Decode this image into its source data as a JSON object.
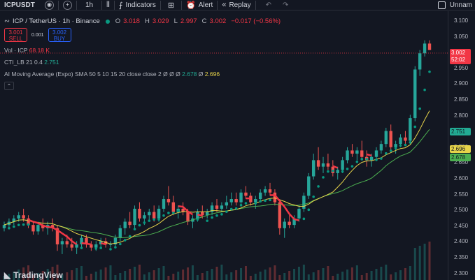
{
  "toolbar": {
    "symbol": "ICPUSDT",
    "interval": "1h",
    "indicators_label": "Indicators",
    "alert_label": "Alert",
    "replay_label": "Replay",
    "layout_name": "Unnam"
  },
  "legend": {
    "title": "ICP / TetherUS · 1h · Binance",
    "open_key": "O",
    "open": "3.018",
    "high_key": "H",
    "high": "3.029",
    "low_key": "L",
    "low": "2.997",
    "close_key": "C",
    "close": "3.002",
    "change": "−0.017 (−0.56%)"
  },
  "trade": {
    "sell_price": "3.001",
    "sell_label": "SELL",
    "spread": "0.001",
    "buy_price": "3.002",
    "buy_label": "BUY"
  },
  "indicators": {
    "vol_label": "Vol · ICP",
    "vol_value": "68.18 K",
    "cti_label": "CTI_LB 21 0.4",
    "cti_value": "2.751",
    "ama_label": "AI Moving Average (Expo) SMA 50 5 10 15 20 close close 2",
    "ama_v1": "Ø",
    "ama_v2": "Ø",
    "ama_v3": "Ø",
    "ama_v4": "2.678",
    "ama_v5": "Ø",
    "ama_v6": "2.696"
  },
  "price_axis": {
    "ticks": [
      "3.100",
      "3.050",
      "3.000",
      "2.950",
      "2.900",
      "2.850",
      "2.800",
      "2.750",
      "2.700",
      "2.650",
      "2.600",
      "2.550",
      "2.500",
      "2.450",
      "2.400",
      "2.350",
      "2.300"
    ]
  },
  "price_tags": {
    "last_price": "3.002",
    "countdown": "52:02",
    "cti": "2.751",
    "ama_yellow": "2.696",
    "ama_green": "2.678"
  },
  "colors": {
    "up": "#26a69a",
    "down": "#ef5350",
    "bg": "#131722",
    "ama_red": "#f23645",
    "ama_green": "#089981",
    "ma_yellow": "#e6d34a",
    "ma_green": "#4caf50"
  },
  "watermark": "TradingView",
  "chart_data": {
    "type": "candlestick",
    "ylim": [
      2.29,
      3.12
    ],
    "candles": [
      [
        2.45,
        2.47,
        2.44,
        2.46
      ],
      [
        2.46,
        2.48,
        2.45,
        2.47
      ],
      [
        2.47,
        2.49,
        2.46,
        2.48
      ],
      [
        2.48,
        2.5,
        2.47,
        2.49
      ],
      [
        2.49,
        2.51,
        2.47,
        2.48
      ],
      [
        2.48,
        2.49,
        2.45,
        2.46
      ],
      [
        2.46,
        2.47,
        2.43,
        2.44
      ],
      [
        2.44,
        2.47,
        2.43,
        2.46
      ],
      [
        2.46,
        2.48,
        2.44,
        2.45
      ],
      [
        2.45,
        2.47,
        2.43,
        2.46
      ],
      [
        2.46,
        2.48,
        2.44,
        2.45
      ],
      [
        2.45,
        2.46,
        2.38,
        2.4
      ],
      [
        2.4,
        2.42,
        2.37,
        2.41
      ],
      [
        2.41,
        2.43,
        2.39,
        2.4
      ],
      [
        2.4,
        2.42,
        2.38,
        2.39
      ],
      [
        2.39,
        2.41,
        2.37,
        2.4
      ],
      [
        2.4,
        2.43,
        2.39,
        2.42
      ],
      [
        2.42,
        2.43,
        2.39,
        2.4
      ],
      [
        2.4,
        2.41,
        2.38,
        2.39
      ],
      [
        2.39,
        2.41,
        2.38,
        2.4
      ],
      [
        2.4,
        2.42,
        2.39,
        2.41
      ],
      [
        2.41,
        2.42,
        2.39,
        2.4
      ],
      [
        2.4,
        2.41,
        2.39,
        2.4
      ],
      [
        2.4,
        2.43,
        2.39,
        2.42
      ],
      [
        2.42,
        2.46,
        2.41,
        2.45
      ],
      [
        2.45,
        2.48,
        2.43,
        2.47
      ],
      [
        2.47,
        2.5,
        2.45,
        2.46
      ],
      [
        2.46,
        2.52,
        2.45,
        2.51
      ],
      [
        2.51,
        2.53,
        2.47,
        2.48
      ],
      [
        2.48,
        2.5,
        2.46,
        2.49
      ],
      [
        2.49,
        2.51,
        2.47,
        2.5
      ],
      [
        2.5,
        2.52,
        2.47,
        2.48
      ],
      [
        2.48,
        2.52,
        2.47,
        2.51
      ],
      [
        2.51,
        2.55,
        2.5,
        2.54
      ],
      [
        2.54,
        2.58,
        2.52,
        2.53
      ],
      [
        2.53,
        2.55,
        2.49,
        2.5
      ],
      [
        2.5,
        2.52,
        2.48,
        2.51
      ],
      [
        2.51,
        2.53,
        2.49,
        2.5
      ],
      [
        2.5,
        2.51,
        2.46,
        2.47
      ],
      [
        2.47,
        2.49,
        2.45,
        2.48
      ],
      [
        2.48,
        2.51,
        2.47,
        2.5
      ],
      [
        2.5,
        2.52,
        2.48,
        2.49
      ],
      [
        2.49,
        2.51,
        2.48,
        2.5
      ],
      [
        2.5,
        2.53,
        2.49,
        2.52
      ],
      [
        2.52,
        2.54,
        2.5,
        2.51
      ],
      [
        2.51,
        2.53,
        2.5,
        2.52
      ],
      [
        2.52,
        2.55,
        2.51,
        2.53
      ],
      [
        2.53,
        2.56,
        2.52,
        2.54
      ],
      [
        2.54,
        2.56,
        2.52,
        2.53
      ],
      [
        2.53,
        2.57,
        2.52,
        2.56
      ],
      [
        2.56,
        2.58,
        2.54,
        2.55
      ],
      [
        2.55,
        2.56,
        2.52,
        2.53
      ],
      [
        2.53,
        2.55,
        2.51,
        2.54
      ],
      [
        2.54,
        2.57,
        2.53,
        2.56
      ],
      [
        2.56,
        2.58,
        2.55,
        2.57
      ],
      [
        2.57,
        2.59,
        2.55,
        2.56
      ],
      [
        2.56,
        2.57,
        2.52,
        2.53
      ],
      [
        2.53,
        2.54,
        2.43,
        2.45
      ],
      [
        2.45,
        2.48,
        2.42,
        2.47
      ],
      [
        2.47,
        2.49,
        2.45,
        2.46
      ],
      [
        2.46,
        2.49,
        2.45,
        2.48
      ],
      [
        2.48,
        2.52,
        2.47,
        2.51
      ],
      [
        2.51,
        2.56,
        2.5,
        2.55
      ],
      [
        2.55,
        2.62,
        2.54,
        2.61
      ],
      [
        2.61,
        2.68,
        2.6,
        2.66
      ],
      [
        2.66,
        2.7,
        2.63,
        2.64
      ],
      [
        2.64,
        2.67,
        2.62,
        2.65
      ],
      [
        2.65,
        2.68,
        2.63,
        2.64
      ],
      [
        2.64,
        2.66,
        2.61,
        2.62
      ],
      [
        2.62,
        2.64,
        2.6,
        2.63
      ],
      [
        2.63,
        2.67,
        2.62,
        2.66
      ],
      [
        2.66,
        2.7,
        2.65,
        2.69
      ],
      [
        2.69,
        2.71,
        2.67,
        2.68
      ],
      [
        2.68,
        2.7,
        2.66,
        2.69
      ],
      [
        2.69,
        2.72,
        2.66,
        2.67
      ],
      [
        2.67,
        2.69,
        2.64,
        2.66
      ],
      [
        2.66,
        2.68,
        2.64,
        2.67
      ],
      [
        2.67,
        2.7,
        2.66,
        2.69
      ],
      [
        2.69,
        2.72,
        2.68,
        2.71
      ],
      [
        2.71,
        2.76,
        2.7,
        2.75
      ],
      [
        2.75,
        2.77,
        2.69,
        2.7
      ],
      [
        2.7,
        2.72,
        2.68,
        2.71
      ],
      [
        2.71,
        2.74,
        2.7,
        2.73
      ],
      [
        2.73,
        2.75,
        2.71,
        2.72
      ],
      [
        2.72,
        2.8,
        2.71,
        2.79
      ],
      [
        2.79,
        2.95,
        2.78,
        2.94
      ],
      [
        2.94,
        3.0,
        2.92,
        2.99
      ],
      [
        2.99,
        3.03,
        2.98,
        3.02
      ],
      [
        3.02,
        3.03,
        3.0,
        3.0
      ]
    ],
    "moving_average_yellow_last": 2.696,
    "moving_average_green_last": 2.678,
    "cti_last": 2.751
  }
}
